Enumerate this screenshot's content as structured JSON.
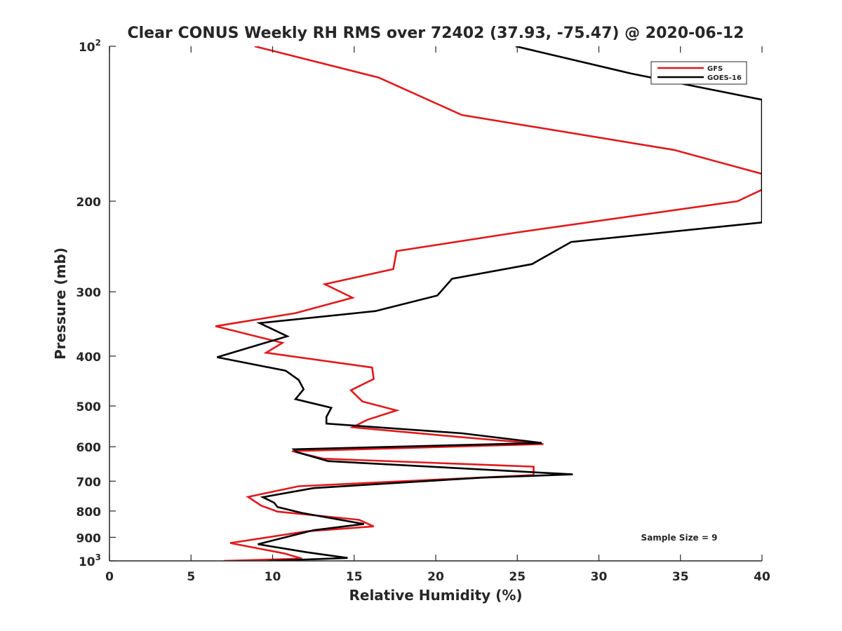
{
  "chart_data": {
    "type": "line",
    "title": "Clear CONUS Weekly RH RMS over 72402 (37.93, -75.47) @ 2020-06-12",
    "xlabel": "Relative Humidity (%)",
    "ylabel": "Pressure (mb)",
    "xlim": [
      0,
      40
    ],
    "ylim": [
      100,
      1000
    ],
    "yscale": "log",
    "yreversed": true,
    "xticks": [
      0,
      5,
      10,
      15,
      20,
      25,
      30,
      35,
      40
    ],
    "yticks": [
      {
        "value": 100,
        "base": "10",
        "exp": "2"
      },
      {
        "value": 200,
        "base": "200"
      },
      {
        "value": 300,
        "base": "300"
      },
      {
        "value": 400,
        "base": "400"
      },
      {
        "value": 500,
        "base": "500"
      },
      {
        "value": 600,
        "base": "600"
      },
      {
        "value": 700,
        "base": "700"
      },
      {
        "value": 800,
        "base": "800"
      },
      {
        "value": 900,
        "base": "900"
      },
      {
        "value": 1000,
        "base": "10",
        "exp": "3"
      }
    ],
    "legend_position": "top-right",
    "annotation": "Sample Size = 9",
    "series": [
      {
        "name": "GFS",
        "color": "#e0191c",
        "points": [
          [
            8.9,
            100
          ],
          [
            16.5,
            115
          ],
          [
            21.6,
            136
          ],
          [
            34.6,
            159
          ],
          [
            40,
            177
          ],
          [
            40,
            190
          ],
          [
            38.5,
            200
          ],
          [
            25,
            230
          ],
          [
            17.6,
            250
          ],
          [
            17.4,
            271
          ],
          [
            13.2,
            290
          ],
          [
            14.9,
            308
          ],
          [
            11.4,
            330
          ],
          [
            6.5,
            350
          ],
          [
            10.6,
            377
          ],
          [
            9.6,
            394
          ],
          [
            16.1,
            421
          ],
          [
            16.2,
            443
          ],
          [
            14.8,
            466
          ],
          [
            15.5,
            490
          ],
          [
            17.6,
            510
          ],
          [
            15.8,
            532
          ],
          [
            14.9,
            550
          ],
          [
            21.6,
            575
          ],
          [
            26.6,
            593
          ],
          [
            11.2,
            612
          ],
          [
            13.1,
            633
          ],
          [
            26.0,
            656
          ],
          [
            26.0,
            681
          ],
          [
            11.6,
            716
          ],
          [
            8.5,
            751
          ],
          [
            9.3,
            781
          ],
          [
            10.3,
            802
          ],
          [
            15.3,
            832
          ],
          [
            16.2,
            857
          ],
          [
            12.1,
            876
          ],
          [
            7.4,
            923
          ],
          [
            10.7,
            967
          ],
          [
            11.8,
            990
          ],
          [
            7.0,
            1000
          ]
        ]
      },
      {
        "name": "GOES-16",
        "color": "#000000",
        "points": [
          [
            24.9,
            100
          ],
          [
            32.0,
            113
          ],
          [
            40,
            127
          ],
          [
            40,
            220
          ],
          [
            28.3,
            240
          ],
          [
            25.9,
            265
          ],
          [
            21.0,
            283
          ],
          [
            20.1,
            305
          ],
          [
            16.3,
            327
          ],
          [
            9.2,
            345
          ],
          [
            10.9,
            366
          ],
          [
            6.6,
            402
          ],
          [
            10.8,
            427
          ],
          [
            11.6,
            445
          ],
          [
            11.9,
            464
          ],
          [
            11.4,
            485
          ],
          [
            13.6,
            504
          ],
          [
            13.3,
            525
          ],
          [
            13.3,
            541
          ],
          [
            21.6,
            565
          ],
          [
            26.5,
            590
          ],
          [
            11.3,
            607
          ],
          [
            11.5,
            615
          ],
          [
            13.4,
            640
          ],
          [
            28.4,
            679
          ],
          [
            22.8,
            689
          ],
          [
            12.5,
            722
          ],
          [
            9.4,
            752
          ],
          [
            10.1,
            771
          ],
          [
            10.3,
            786
          ],
          [
            11.8,
            807
          ],
          [
            15.6,
            848
          ],
          [
            12.5,
            872
          ],
          [
            9.1,
            928
          ],
          [
            12.1,
            962
          ],
          [
            14.6,
            987
          ],
          [
            9.7,
            1000
          ]
        ]
      }
    ]
  }
}
